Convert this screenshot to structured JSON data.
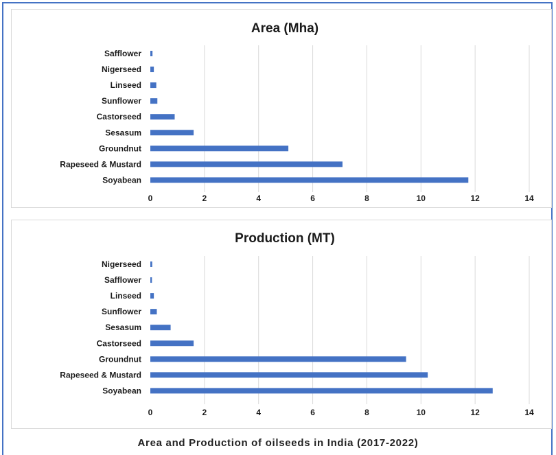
{
  "caption": "Area and Production of oilseeds in India (2017-2022)",
  "colors": {
    "bar": "#4472c4",
    "grid": "#d9d9d9",
    "frame": "#4472c4"
  },
  "chart_data": [
    {
      "type": "bar",
      "orientation": "horizontal",
      "title": "Area (Mha)",
      "categories": [
        "Safflower",
        "Nigerseed",
        "Linseed",
        "Sunflower",
        "Castorseed",
        "Sesasum",
        "Groundnut",
        "Rapeseed & Mustard",
        "Soyabean"
      ],
      "values": [
        0.08,
        0.13,
        0.22,
        0.26,
        0.9,
        1.6,
        5.1,
        7.1,
        11.75
      ],
      "xlim": [
        0,
        14
      ],
      "xticks": [
        0,
        2,
        4,
        6,
        8,
        10,
        12,
        14
      ],
      "grid": true,
      "legend": "none"
    },
    {
      "type": "bar",
      "orientation": "horizontal",
      "title": "Production (MT)",
      "categories": [
        "Nigerseed",
        "Safflower",
        "Linseed",
        "Sunflower",
        "Sesasum",
        "Castorseed",
        "Groundnut",
        "Rapeseed & Mustard",
        "Soyabean"
      ],
      "values": [
        0.07,
        0.06,
        0.13,
        0.24,
        0.75,
        1.6,
        9.45,
        10.25,
        12.65
      ],
      "xlim": [
        0,
        14
      ],
      "xticks": [
        0,
        2,
        4,
        6,
        8,
        10,
        12,
        14
      ],
      "grid": true,
      "legend": "none"
    }
  ]
}
